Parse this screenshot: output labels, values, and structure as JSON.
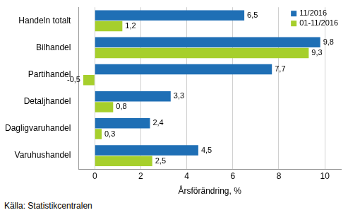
{
  "chart_data": {
    "type": "bar",
    "orientation": "horizontal",
    "categories": [
      "Handeln totalt",
      "Bilhandel",
      "Partihandel",
      "Detaljhandel",
      "Dagligvaruhandel",
      "Varuhushandel"
    ],
    "series": [
      {
        "name": "11/2016",
        "color": "#1f6fb5",
        "values": [
          6.5,
          9.8,
          7.7,
          3.3,
          2.4,
          4.5
        ],
        "value_labels": [
          "6,5",
          "9,8",
          "7,7",
          "3,3",
          "2,4",
          "4,5"
        ]
      },
      {
        "name": "01-11/2016",
        "color": "#a6cf2c",
        "values": [
          1.2,
          9.3,
          -0.5,
          0.8,
          0.3,
          2.5
        ],
        "value_labels": [
          "1,2",
          "9,3",
          "-0,5",
          "0,8",
          "0,3",
          "2,5"
        ]
      }
    ],
    "xlabel": "Årsförändring, %",
    "xlim": [
      -0.7,
      10.7
    ],
    "xticks": [
      0,
      2,
      4,
      6,
      8,
      10
    ],
    "grid": true,
    "legend": "upper right",
    "data_labels": true,
    "source": "Källa: Statistikcentralen"
  }
}
